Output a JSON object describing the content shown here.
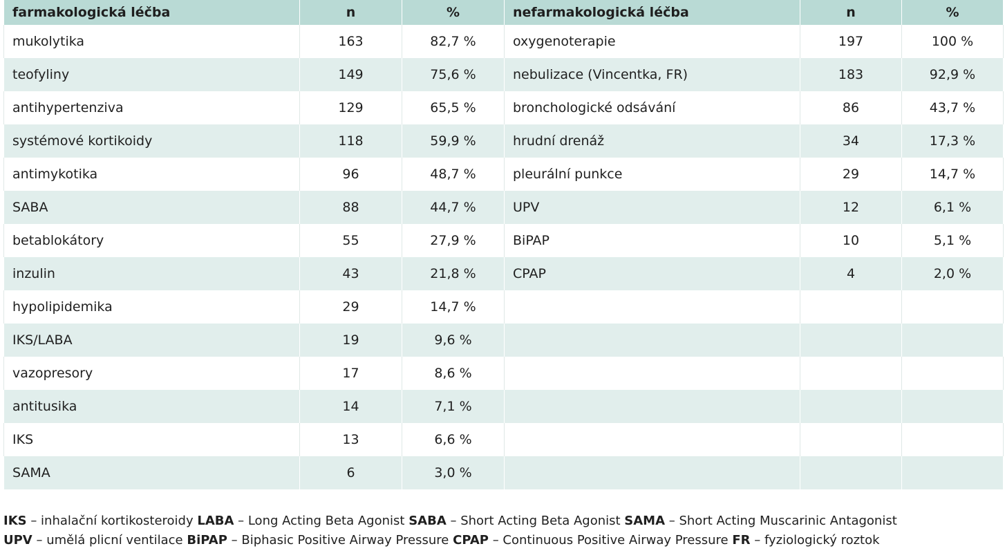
{
  "table": {
    "headers": {
      "left_name": "farmakologická léčba",
      "left_n": "n",
      "left_pct": "%",
      "right_name": "nefarmakologická léčba",
      "right_n": "n",
      "right_pct": "%"
    },
    "rows": [
      {
        "l_name": "mukolytika",
        "l_n": "163",
        "l_pct": "82,7 %",
        "r_name": "oxygenoterapie",
        "r_n": "197",
        "r_pct": "100 %"
      },
      {
        "l_name": "teofyliny",
        "l_n": "149",
        "l_pct": "75,6 %",
        "r_name": "nebulizace (Vincentka, FR)",
        "r_n": "183",
        "r_pct": "92,9 %"
      },
      {
        "l_name": "antihypertenziva",
        "l_n": "129",
        "l_pct": "65,5 %",
        "r_name": "bronchologické odsávání",
        "r_n": "86",
        "r_pct": "43,7 %"
      },
      {
        "l_name": "systémové kortikoidy",
        "l_n": "118",
        "l_pct": "59,9 %",
        "r_name": "hrudní drenáž",
        "r_n": "34",
        "r_pct": "17,3 %"
      },
      {
        "l_name": "antimykotika",
        "l_n": "96",
        "l_pct": "48,7 %",
        "r_name": "pleurální punkce",
        "r_n": "29",
        "r_pct": "14,7 %"
      },
      {
        "l_name": "SABA",
        "l_n": "88",
        "l_pct": "44,7 %",
        "r_name": "UPV",
        "r_n": "12",
        "r_pct": "6,1 %"
      },
      {
        "l_name": "betablokátory",
        "l_n": "55",
        "l_pct": "27,9 %",
        "r_name": "BiPAP",
        "r_n": "10",
        "r_pct": "5,1 %"
      },
      {
        "l_name": "inzulin",
        "l_n": "43",
        "l_pct": "21,8 %",
        "r_name": "CPAP",
        "r_n": "4",
        "r_pct": "2,0 %"
      },
      {
        "l_name": "hypolipidemika",
        "l_n": "29",
        "l_pct": "14,7 %",
        "r_name": "",
        "r_n": "",
        "r_pct": ""
      },
      {
        "l_name": "IKS/LABA",
        "l_n": "19",
        "l_pct": "9,6 %",
        "r_name": "",
        "r_n": "",
        "r_pct": ""
      },
      {
        "l_name": "vazopresory",
        "l_n": "17",
        "l_pct": "8,6 %",
        "r_name": "",
        "r_n": "",
        "r_pct": ""
      },
      {
        "l_name": "antitusika",
        "l_n": "14",
        "l_pct": "7,1 %",
        "r_name": "",
        "r_n": "",
        "r_pct": ""
      },
      {
        "l_name": "IKS",
        "l_n": "13",
        "l_pct": "6,6 %",
        "r_name": "",
        "r_n": "",
        "r_pct": ""
      },
      {
        "l_name": "SAMA",
        "l_n": "6",
        "l_pct": "3,0 %",
        "r_name": "",
        "r_n": "",
        "r_pct": ""
      }
    ]
  },
  "legend": {
    "line1": [
      {
        "abbr": "IKS",
        "text": " – inhalační kortikosteroidy "
      },
      {
        "abbr": "LABA",
        "text": " – Long Acting Beta Agonist "
      },
      {
        "abbr": "SABA",
        "text": " – Short Acting Beta Agonist "
      },
      {
        "abbr": "SAMA",
        "text": " – Short Acting Muscarinic Antagonist"
      }
    ],
    "line2": [
      {
        "abbr": "UPV",
        "text": " – umělá plicní ventilace "
      },
      {
        "abbr": "BiPAP",
        "text": " – Biphasic Positive Airway Pressure "
      },
      {
        "abbr": "CPAP",
        "text": " – Continuous Positive Airway Pressure "
      },
      {
        "abbr": "FR",
        "text": " – fyziologický roztok"
      }
    ]
  },
  "colors": {
    "header_bg": "#b9dad5",
    "row_alt_bg": "#e1eeec",
    "row_bg": "#ffffff",
    "text": "#1f1f1f"
  }
}
